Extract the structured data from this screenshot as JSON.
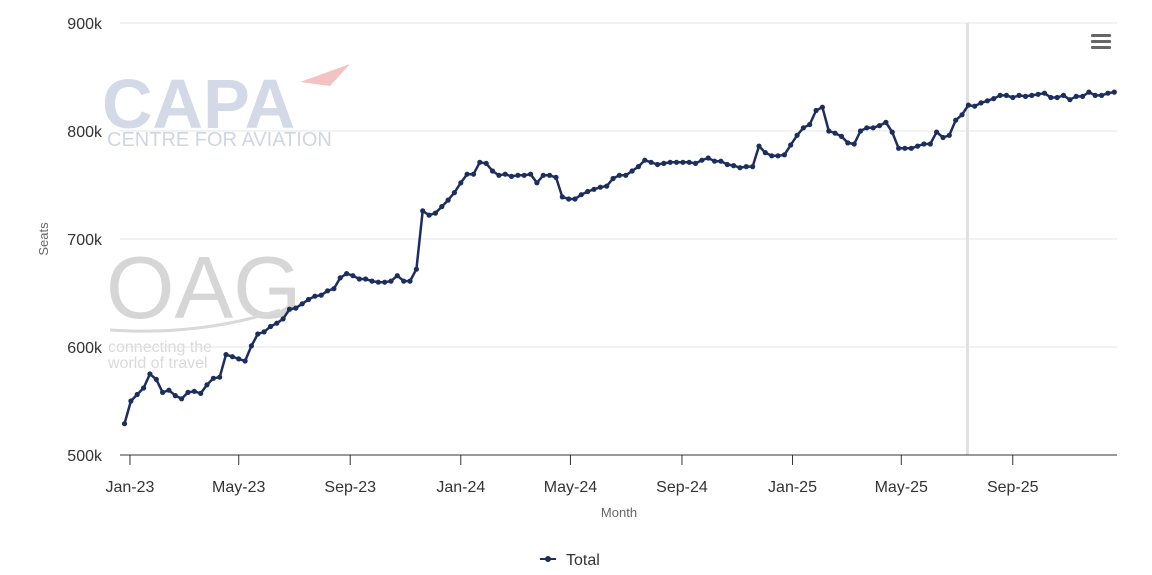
{
  "logos": {
    "capa_text": "CAPA",
    "capa_sub": "CENTRE FOR AVIATION",
    "oag_text": "OAG",
    "oag_sub1": "connecting the",
    "oag_sub2": "world of travel"
  },
  "colors": {
    "series": "#1c2e5e",
    "grid": "#e6e6e6",
    "plotline": "#e0e0e0"
  },
  "menu_icon": "hamburger-menu-icon",
  "chart_data": {
    "type": "line",
    "ylabel": "Seats",
    "xlabel": "Month",
    "ylim": [
      500000,
      900000
    ],
    "y_ticks": [
      {
        "value": 500000,
        "label": "500k"
      },
      {
        "value": 600000,
        "label": "600k"
      },
      {
        "value": 700000,
        "label": "700k"
      },
      {
        "value": 800000,
        "label": "800k"
      },
      {
        "value": 900000,
        "label": "900k"
      }
    ],
    "xlim": [
      "2022-12-21",
      "2025-12-25"
    ],
    "x_ticks": [
      {
        "value": "2023-01-01",
        "label": "Jan-23"
      },
      {
        "value": "2023-05-01",
        "label": "May-23"
      },
      {
        "value": "2023-09-01",
        "label": "Sep-23"
      },
      {
        "value": "2024-01-01",
        "label": "Jan-24"
      },
      {
        "value": "2024-05-01",
        "label": "May-24"
      },
      {
        "value": "2024-09-01",
        "label": "Sep-24"
      },
      {
        "value": "2025-01-01",
        "label": "Jan-25"
      },
      {
        "value": "2025-05-01",
        "label": "May-25"
      },
      {
        "value": "2025-09-01",
        "label": "Sep-25"
      }
    ],
    "plot_line_x": "2025-07-13",
    "grid": true,
    "legend_position": "bottom-center",
    "series": [
      {
        "name": "Total",
        "x_start": "2022-12-26",
        "x_step_days": 7,
        "values": [
          529000,
          550000,
          556000,
          562000,
          575000,
          570000,
          558000,
          560000,
          555000,
          552000,
          558000,
          559000,
          557000,
          565000,
          571000,
          572000,
          593000,
          591000,
          589000,
          587000,
          601000,
          612000,
          614000,
          619000,
          622000,
          626000,
          635000,
          636000,
          640000,
          644000,
          647000,
          648000,
          652000,
          654000,
          664000,
          668000,
          666000,
          663000,
          663000,
          661000,
          660000,
          660000,
          661000,
          666000,
          661000,
          661000,
          672000,
          726000,
          722000,
          724000,
          730000,
          736000,
          743000,
          752000,
          760000,
          760000,
          771000,
          770000,
          763000,
          759000,
          760000,
          758000,
          759000,
          759000,
          760000,
          752000,
          759000,
          759000,
          757000,
          739000,
          737000,
          737000,
          741000,
          744000,
          746000,
          748000,
          749000,
          756000,
          759000,
          759000,
          763000,
          767000,
          773000,
          771000,
          769000,
          770000,
          771000,
          771000,
          771000,
          771000,
          770000,
          773000,
          775000,
          772000,
          772000,
          769000,
          768000,
          766000,
          767000,
          767000,
          786000,
          780000,
          777000,
          777000,
          778000,
          787000,
          796000,
          803000,
          806000,
          819000,
          822000,
          800000,
          798000,
          795000,
          789000,
          788000,
          800000,
          803000,
          803000,
          805000,
          808000,
          799000,
          784000,
          784000,
          784000,
          786000,
          788000,
          788000,
          799000,
          794000,
          796000,
          810000,
          815000,
          824000,
          823000,
          826000,
          828000,
          830000,
          833000,
          833000,
          831000,
          833000,
          832000,
          833000,
          834000,
          835000,
          831000,
          831000,
          833000,
          829000,
          832000,
          832000,
          836000,
          833000,
          833000,
          835000,
          836000
        ]
      }
    ]
  }
}
